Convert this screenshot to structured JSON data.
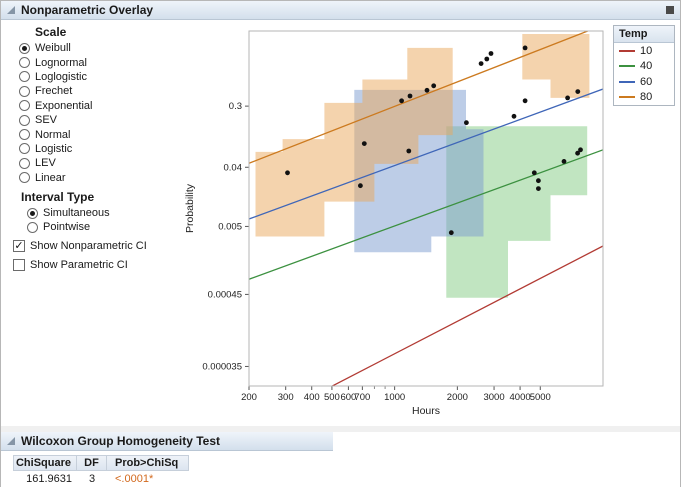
{
  "panels": {
    "overlay": {
      "title": "Nonparametric Overlay"
    },
    "wilcoxon": {
      "title": "Wilcoxon Group Homogeneity Test"
    }
  },
  "controls": {
    "scale": {
      "label": "Scale",
      "selected": "Weibull",
      "options": [
        "Weibull",
        "Lognormal",
        "Loglogistic",
        "Frechet",
        "Exponential",
        "SEV",
        "Normal",
        "Logistic",
        "LEV",
        "Linear"
      ]
    },
    "interval_type": {
      "label": "Interval Type",
      "selected": "Simultaneous",
      "options": [
        "Simultaneous",
        "Pointwise"
      ]
    },
    "checkboxes": [
      {
        "label": "Show Nonparametric CI",
        "checked": true
      },
      {
        "label": "Show Parametric CI",
        "checked": false
      }
    ]
  },
  "legend": {
    "title": "Temp",
    "entries": [
      {
        "label": "10",
        "color": "#b23b34"
      },
      {
        "label": "40",
        "color": "#3c9140"
      },
      {
        "label": "60",
        "color": "#3f66b8"
      },
      {
        "label": "80",
        "color": "#cc7a1f"
      }
    ]
  },
  "chart_data": {
    "type": "line",
    "subtype": "weibull-probability-plot-with-ci",
    "title": "",
    "xlabel": "Hours",
    "ylabel": "Probability",
    "x_scale": "log",
    "y_scale": "weibull-probability",
    "xlim": [
      200,
      10000
    ],
    "ylim": [
      1.75e-05,
      0.994
    ],
    "x_ticks": [
      200,
      300,
      400,
      500,
      600,
      700,
      1000,
      2000,
      3000,
      4000,
      5000
    ],
    "x_minor_ticks": [
      800,
      900
    ],
    "y_ticks": [
      0.3,
      0.04,
      0.005,
      0.00045,
      3.5e-05
    ],
    "y_tick_labels": [
      "0.3",
      "0.04",
      "0.005",
      "0.00045",
      "0.000035"
    ],
    "grid": false,
    "legend_position": "right",
    "point_color": "#111111",
    "series": [
      {
        "name": "10",
        "color": "#b23b34",
        "fit_line": [
          [
            200,
            3.8e-06
          ],
          [
            10000,
            0.0025
          ]
        ],
        "region_color": "#e9a85c",
        "ci_regions": []
      },
      {
        "name": "40",
        "color": "#3c9140",
        "region_color": "#84cb84",
        "fit_line": [
          [
            200,
            0.00077
          ],
          [
            10000,
            0.073
          ]
        ],
        "ci_regions": [
          [
            [
              1770,
              0.16
            ],
            [
              8400,
              0.16
            ],
            [
              8400,
              0.015
            ],
            [
              5600,
              0.015
            ],
            [
              5600,
              0.003
            ],
            [
              3500,
              0.003
            ],
            [
              3500,
              0.0004
            ],
            [
              1770,
              0.0004
            ]
          ]
        ]
      },
      {
        "name": "60",
        "color": "#3f66b8",
        "region_color": "#7b9cd0",
        "fit_line": [
          [
            200,
            0.0065
          ],
          [
            10000,
            0.48
          ]
        ],
        "ci_regions": [
          [
            [
              640,
              0.47
            ],
            [
              2200,
              0.47
            ],
            [
              2200,
              0.145
            ],
            [
              2670,
              0.145
            ],
            [
              2670,
              0.0035
            ],
            [
              1500,
              0.0035
            ],
            [
              1500,
              0.002
            ],
            [
              640,
              0.002
            ]
          ]
        ]
      },
      {
        "name": "80",
        "color": "#cc7a1f",
        "region_color": "#e9a85c",
        "fit_line": [
          [
            200,
            0.046
          ],
          [
            8450,
            0.994
          ]
        ],
        "ci_regions": [
          [
            [
              215,
              0.068
            ],
            [
              290,
              0.068
            ],
            [
              290,
              0.105
            ],
            [
              460,
              0.105
            ],
            [
              460,
              0.33
            ],
            [
              700,
              0.33
            ],
            [
              700,
              0.6
            ],
            [
              1150,
              0.6
            ],
            [
              1150,
              0.94
            ],
            [
              1900,
              0.94
            ],
            [
              1900,
              0.12
            ],
            [
              1300,
              0.12
            ],
            [
              1300,
              0.045
            ],
            [
              800,
              0.045
            ],
            [
              800,
              0.012
            ],
            [
              460,
              0.012
            ],
            [
              460,
              0.0035
            ],
            [
              215,
              0.0035
            ]
          ],
          [
            [
              4100,
              0.6
            ],
            [
              4100,
              0.99
            ],
            [
              8600,
              0.99
            ],
            [
              8600,
              0.38
            ],
            [
              5600,
              0.38
            ],
            [
              5600,
              0.6
            ]
          ]
        ]
      }
    ],
    "points": [
      [
        306,
        0.033
      ],
      [
        715,
        0.09
      ],
      [
        1080,
        0.35
      ],
      [
        1185,
        0.4
      ],
      [
        1430,
        0.465
      ],
      [
        1540,
        0.52
      ],
      [
        2600,
        0.8
      ],
      [
        2770,
        0.85
      ],
      [
        2900,
        0.9
      ],
      [
        4230,
        0.94
      ],
      [
        685,
        0.021
      ],
      [
        1170,
        0.07
      ],
      [
        2210,
        0.18
      ],
      [
        3740,
        0.22
      ],
      [
        4230,
        0.35
      ],
      [
        6760,
        0.38
      ],
      [
        7570,
        0.45
      ],
      [
        1870,
        0.004
      ],
      [
        4680,
        0.033
      ],
      [
        4900,
        0.025
      ],
      [
        4900,
        0.019
      ],
      [
        6500,
        0.049
      ],
      [
        7550,
        0.065
      ],
      [
        7800,
        0.073
      ]
    ]
  },
  "wilcoxon_table": {
    "columns": [
      "ChiSquare",
      "DF",
      "Prob>ChiSq"
    ],
    "rows": [
      [
        "161.9631",
        "3",
        "<.0001*"
      ]
    ],
    "significant_color": "#d2691e"
  }
}
